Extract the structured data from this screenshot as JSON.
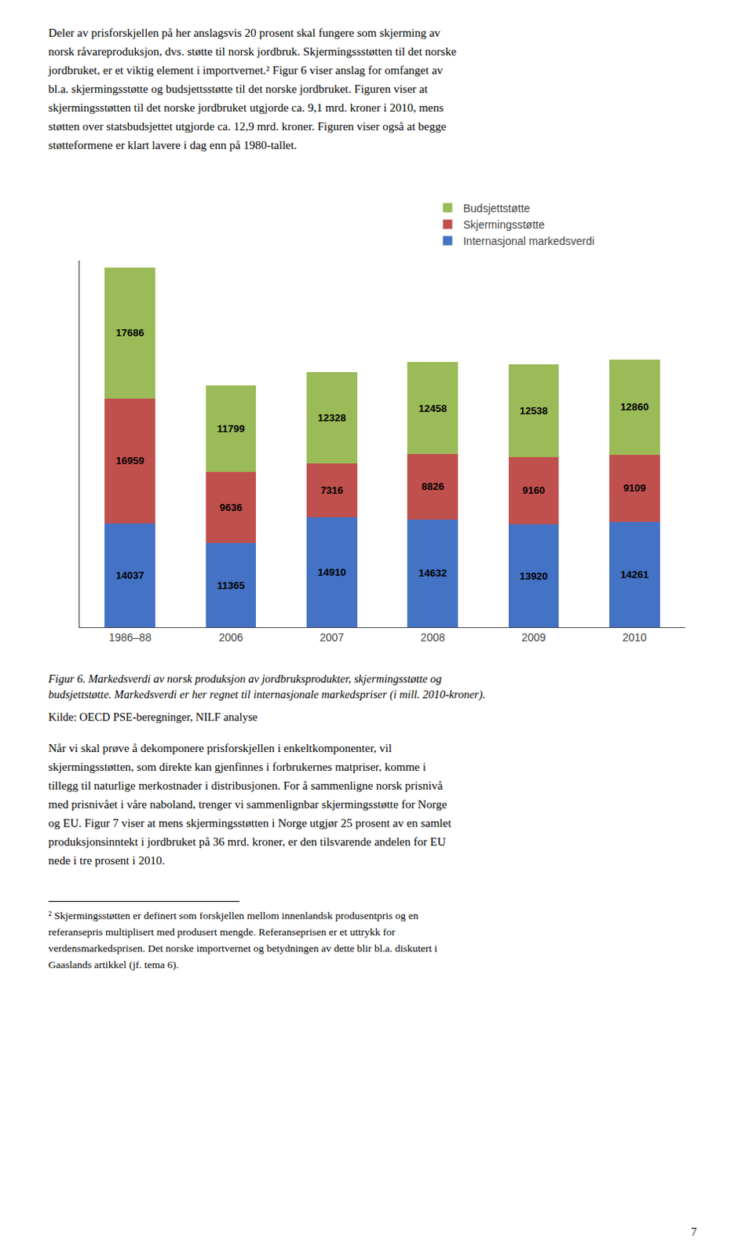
{
  "chart_data": {
    "type": "bar",
    "stacked": true,
    "categories": [
      "1986–88",
      "2006",
      "2007",
      "2008",
      "2009",
      "2010"
    ],
    "series": [
      {
        "name": "Internasjonal markedsverdi",
        "color": "#4472C4",
        "values": [
          14037,
          11365,
          14910,
          14632,
          13920,
          14261
        ]
      },
      {
        "name": "Skjermingsstøtte",
        "color": "#C0504D",
        "values": [
          16959,
          9636,
          7316,
          8826,
          9160,
          9109
        ]
      },
      {
        "name": "Budsjettstøtte",
        "color": "#9BBB59",
        "values": [
          17686,
          11799,
          12328,
          12458,
          12538,
          12860
        ]
      }
    ],
    "ylim": [
      0,
      49655.64
    ],
    "data_labels": true,
    "tick_labels": "x",
    "grid": false,
    "legend": "top",
    "annotations": [
      "Deler av prisforskjellen på her anslagsvis 20 prosent skal fungere som skjerming av\nnorsk råvareproduksjon, dvs. støtte til norsk jordbruk. Skjermingssstøtten til det norske\njordbruket, er et viktig element i importvernet.² Figur 6 viser anslag for omfanget av\nbl.a. skjermingsstøtte og budsjettsstøtte til det norske jordbruket. Figuren viser at\nskjermingsstøtten til det norske jordbruket utgjorde ca. 9,1 mrd. kroner i 2010, mens\nstøtten over statsbudsjettet utgjorde ca. 12,9 mrd. kroner. Figuren viser også at begge\nstøtteformene er klart lavere i dag enn på 1980-tallet.",
      "Figur 6. Markedsverdi av norsk produksjon av jordbruksprodukter, skjermingsstøtte og\nbudsjettstøtte. Markedsverdi er her regnet til internasjonale markedspriser (i mill. 2010-kroner).",
      "Kilde: OECD PSE-beregninger, NILF analyse",
      "Når vi skal prøve å dekomponere prisforskjellen i enkeltkomponenter, vil\nskjermingsstøtten, som direkte kan gjenfinnes i forbrukernes matpriser, komme i\ntillegg til naturlige merkostnader i distribusjonen. For å sammenligne norsk prisnivå\nmed prisnivået i våre naboland, trenger vi sammenlignbar skjermingsstøtte for Norge\nog EU. Figur 7 viser at mens skjermingsstøtten i Norge utgjør 25 prosent av en samlet\nproduksjonsinntekt i jordbruket på 36 mrd. kroner, er den tilsvarende andelen for EU\nnede i tre prosent i 2010.",
      "² Skjermingsstøtten er definert som forskjellen mellom innenlandsk produsentpris og en\nreferansepris multiplisert med produsert mengde. Referanseprisen er et uttrykk for\nverdensmarkedsprisen. Det norske importvernet og betydningen av dette blir bl.a. diskutert i\nGaaslands artikkel (jf. tema 6).",
      "7"
    ]
  }
}
